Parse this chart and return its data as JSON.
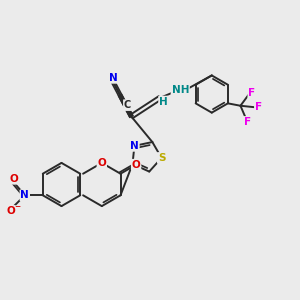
{
  "bg_color": "#ebebeb",
  "bond_color": "#2a2a2a",
  "bond_width": 1.4,
  "atom_colors": {
    "N": "#0000ee",
    "O": "#dd0000",
    "S": "#bbaa00",
    "F": "#ee00ee",
    "C": "#2a2a2a",
    "H": "#008888",
    "NH": "#008888"
  },
  "font_size": 7.5
}
